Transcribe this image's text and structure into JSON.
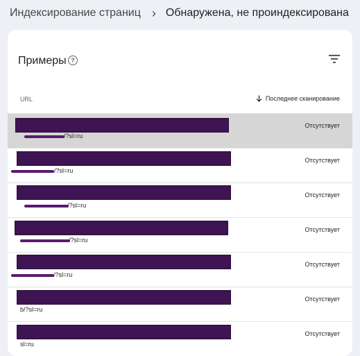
{
  "breadcrumb": {
    "parent": "Индексирование страниц",
    "separator": "›",
    "current": "Обнаружена, не проиндексирована"
  },
  "card": {
    "title": "Примеры",
    "help_icon": "?",
    "columns": {
      "url": "URL",
      "last_scan": "Последнее сканирование",
      "sort_direction": "descending"
    },
    "rows": [
      {
        "url_visible": "/?sl=ru",
        "status": "Отсутствует",
        "selected": true
      },
      {
        "url_visible": "/?sl=ru",
        "status": "Отсутствует",
        "selected": false
      },
      {
        "url_visible": "/?sl=ru",
        "status": "Отсутствует",
        "selected": false
      },
      {
        "url_visible": "/?sl=ru",
        "status": "Отсутствует",
        "selected": false
      },
      {
        "url_visible": "/?sl=ru",
        "status": "Отсутствует",
        "selected": false
      },
      {
        "url_visible": "b/?sl=ru",
        "status": "Отсутствует",
        "selected": false
      },
      {
        "url_visible": "sl=ru",
        "status": "Отсутствует",
        "selected": false
      }
    ]
  },
  "colors": {
    "redaction": "#3e1452",
    "selected_row": "#d6d6d6",
    "page_bg": "#eef0f6"
  }
}
